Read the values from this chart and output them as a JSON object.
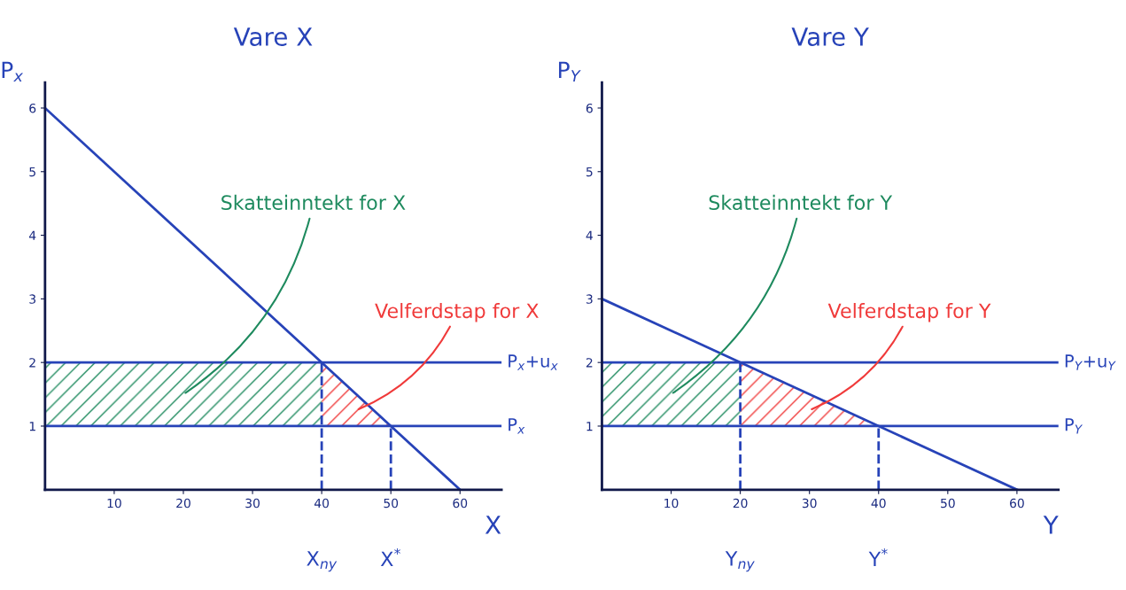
{
  "chart_data": [
    {
      "type": "line",
      "title": "Vare X",
      "xlabel": "X",
      "ylabel": "P$_{x}$",
      "xlim": [
        0,
        66
      ],
      "ylim": [
        0,
        6.4
      ],
      "xticks": [
        10,
        20,
        30,
        40,
        50,
        60
      ],
      "yticks": [
        1,
        2,
        3,
        4,
        5,
        6
      ],
      "grid": false,
      "series": [
        {
          "color": "#2743b8",
          "x": [
            0,
            60
          ],
          "values": [
            6,
            0
          ]
        },
        {
          "color": "#2743b8",
          "x": [
            40,
            40
          ],
          "values": [
            0,
            2
          ],
          "line_style": "dashed"
        },
        {
          "color": "#2743b8",
          "x": [
            50,
            50
          ],
          "values": [
            0,
            1
          ],
          "line_style": "dashed"
        },
        {
          "type": "area",
          "color": "#1e8a5e",
          "x": [
            0,
            40
          ],
          "values": [
            2,
            2
          ]
        },
        {
          "type": "area",
          "color": "#f03a3a",
          "x": [
            40,
            50
          ],
          "values": [
            2,
            1
          ]
        }
      ],
      "ref_lines": [
        {
          "axis": "y",
          "value": 2,
          "label": "P$_{x}$+u$_{x}$",
          "color": "#2743b8"
        },
        {
          "axis": "y",
          "value": 1,
          "label": "P$_{x}$",
          "color": "#2743b8"
        }
      ],
      "annotations": [
        "Skatteinntekt for X",
        "Velferdstap for X",
        "X$_{ny}$",
        "X$^{*}$"
      ]
    },
    {
      "type": "line",
      "title": "Vare Y",
      "xlabel": "Y",
      "ylabel": "P$_{Y}$",
      "xlim": [
        0,
        66
      ],
      "ylim": [
        0,
        6.4
      ],
      "xticks": [
        10,
        20,
        30,
        40,
        50,
        60
      ],
      "yticks": [
        1,
        2,
        3,
        4,
        5,
        6
      ],
      "grid": false,
      "series": [
        {
          "color": "#2743b8",
          "x": [
            0,
            60
          ],
          "values": [
            3,
            0
          ]
        },
        {
          "color": "#2743b8",
          "x": [
            20,
            20
          ],
          "values": [
            0,
            2
          ],
          "line_style": "dashed"
        },
        {
          "color": "#2743b8",
          "x": [
            40,
            40
          ],
          "values": [
            0,
            1
          ],
          "line_style": "dashed"
        },
        {
          "type": "area",
          "color": "#1e8a5e",
          "x": [
            0,
            20
          ],
          "values": [
            2,
            2
          ]
        },
        {
          "type": "area",
          "color": "#f03a3a",
          "x": [
            20,
            40
          ],
          "values": [
            2,
            1
          ]
        }
      ],
      "ref_lines": [
        {
          "axis": "y",
          "value": 2,
          "label": "P$_{Y}$+u$_{Y}$",
          "color": "#2743b8"
        },
        {
          "axis": "y",
          "value": 1,
          "label": "P$_{Y}$",
          "color": "#2743b8"
        }
      ],
      "annotations": [
        "Skatteinntekt for Y",
        "Velferdstap for Y",
        "Y$_{ny}$",
        "Y$^{*}$"
      ]
    }
  ]
}
